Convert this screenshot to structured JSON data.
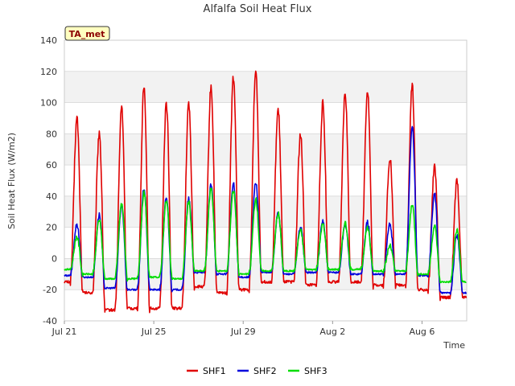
{
  "chart_data": {
    "type": "line",
    "title": "Alfalfa Soil Heat Flux",
    "xlabel": "Time",
    "ylabel": "Soil Heat Flux (W/m2)",
    "badge": "TA_met",
    "ylim": [
      -40,
      140
    ],
    "yticks": [
      -40,
      -20,
      0,
      20,
      40,
      60,
      80,
      100,
      120,
      140
    ],
    "xlim": [
      "2023-07-21",
      "2023-08-08"
    ],
    "xticks": [
      {
        "date": "2023-07-21",
        "label": "Jul 21"
      },
      {
        "date": "2023-07-25",
        "label": "Jul 25"
      },
      {
        "date": "2023-07-29",
        "label": "Jul 29"
      },
      {
        "date": "2023-08-02",
        "label": "Aug 2"
      },
      {
        "date": "2023-08-06",
        "label": "Aug 6"
      }
    ],
    "grid": true,
    "legend_position": "bottom",
    "days": [
      "2023-07-21",
      "2023-07-22",
      "2023-07-23",
      "2023-07-24",
      "2023-07-25",
      "2023-07-26",
      "2023-07-27",
      "2023-07-28",
      "2023-07-29",
      "2023-07-30",
      "2023-07-31",
      "2023-08-01",
      "2023-08-02",
      "2023-08-03",
      "2023-08-04",
      "2023-08-05",
      "2023-08-06",
      "2023-08-07"
    ],
    "series": [
      {
        "name": "SHF1",
        "color": "#e00000",
        "daily_min": [
          -15,
          -22,
          -33,
          -32,
          -32,
          -32,
          -18,
          -22,
          -20,
          -15,
          -15,
          -17,
          -15,
          -15,
          -17,
          -17,
          -20,
          -25
        ],
        "daily_max": [
          90,
          81,
          97,
          110,
          100,
          99,
          110,
          116,
          120,
          95,
          79,
          99,
          106,
          108,
          65,
          111,
          59,
          49
        ]
      },
      {
        "name": "SHF2",
        "color": "#0000dd",
        "daily_min": [
          -11,
          -12,
          -19,
          -20,
          -20,
          -20,
          -9,
          -10,
          -12,
          -9,
          -10,
          -9,
          -9,
          -10,
          -10,
          -10,
          -11,
          -22
        ],
        "daily_max": [
          22,
          28,
          34,
          45,
          39,
          38,
          47,
          48,
          49,
          30,
          20,
          24,
          22,
          23,
          22,
          85,
          42,
          15
        ]
      },
      {
        "name": "SHF3",
        "color": "#00dd00",
        "daily_min": [
          -7,
          -10,
          -13,
          -13,
          -12,
          -13,
          -8,
          -8,
          -10,
          -8,
          -8,
          -7,
          -7,
          -7,
          -8,
          -8,
          -10,
          -15
        ],
        "daily_max": [
          14,
          25,
          35,
          42,
          37,
          36,
          45,
          44,
          38,
          29,
          18,
          22,
          23,
          20,
          8,
          35,
          21,
          18
        ]
      }
    ]
  }
}
